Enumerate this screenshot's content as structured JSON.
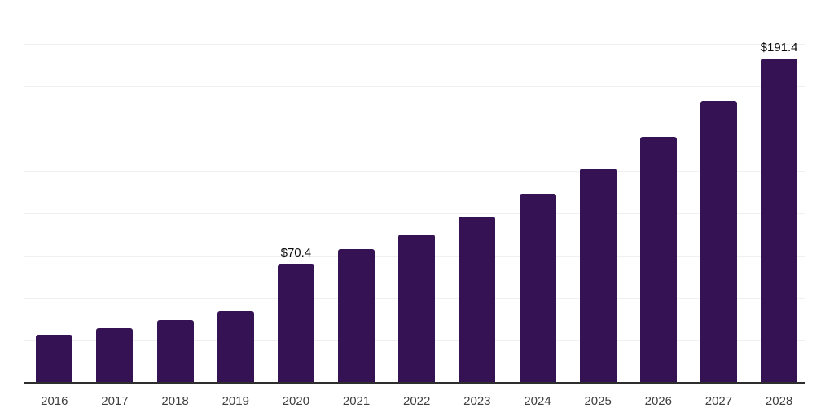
{
  "chart_data": {
    "type": "bar",
    "title": "",
    "xlabel": "",
    "ylabel": "",
    "categories": [
      "2016",
      "2017",
      "2018",
      "2019",
      "2020",
      "2021",
      "2022",
      "2023",
      "2024",
      "2025",
      "2026",
      "2027",
      "2028"
    ],
    "values": [
      28.2,
      32.2,
      37.0,
      42.3,
      70.4,
      79.0,
      87.3,
      98.1,
      111.4,
      126.6,
      145.2,
      166.2,
      191.4
    ],
    "ylim": [
      0,
      225
    ],
    "gridline_step": 25,
    "grid": "horizontal-only",
    "legend_position": "none",
    "data_labels": [
      {
        "category": "2020",
        "text": "$70.4"
      },
      {
        "category": "2028",
        "text": "$191.4"
      }
    ],
    "colors": {
      "bar": "#341253",
      "axis_line": "#2e2e2e",
      "gridline": "#f0f0f1",
      "tick_label": "#3f3f3f",
      "data_label": "#0d0d0d",
      "background": "#ffffff"
    }
  }
}
